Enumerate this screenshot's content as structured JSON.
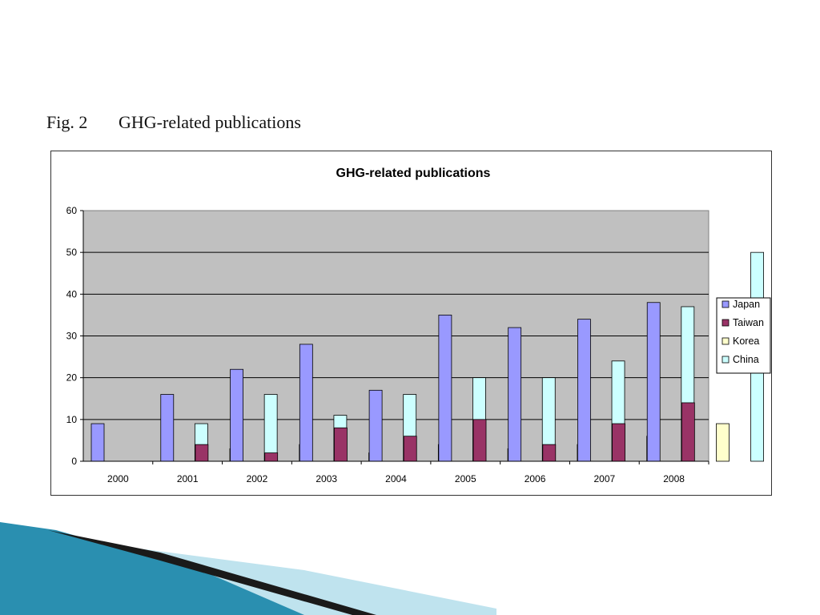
{
  "figure": {
    "number": "Fig. 2",
    "caption": "GHG-related publications"
  },
  "chart_data": {
    "type": "bar",
    "title": "GHG-related publications",
    "xlabel": "",
    "ylabel": "",
    "ylim": [
      0,
      60
    ],
    "yticks": [
      0,
      10,
      20,
      30,
      40,
      50,
      60
    ],
    "grid": true,
    "legend_position": "right",
    "categories": [
      "2000",
      "2001",
      "2002",
      "2003",
      "2004",
      "2005",
      "2006",
      "2007",
      "2008"
    ],
    "series": [
      {
        "name": "Japan",
        "color": "#9999ff",
        "values": [
          9,
          16,
          22,
          28,
          17,
          35,
          32,
          34,
          38
        ]
      },
      {
        "name": "Taiwan",
        "color": "#993366",
        "values": [
          0,
          4,
          2,
          8,
          6,
          10,
          4,
          9,
          14
        ]
      },
      {
        "name": "Korea",
        "color": "#ffffcc",
        "values": [
          0,
          3,
          4,
          2,
          4,
          3,
          4,
          6,
          9
        ]
      },
      {
        "name": "China",
        "color": "#ccffff",
        "values": [
          9,
          16,
          11,
          16,
          20,
          20,
          24,
          37,
          50
        ]
      }
    ]
  },
  "colors": {
    "plot_background": "#c0c0c0",
    "deco_dark": "#1a1a1a",
    "deco_teal": "#2a8fb0",
    "deco_light": "#a9d8e6"
  }
}
